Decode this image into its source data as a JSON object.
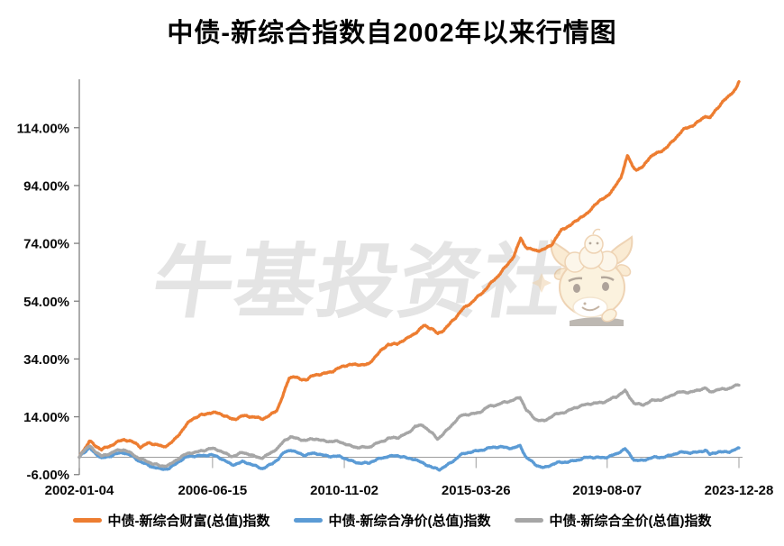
{
  "title": "中债-新综合指数自2002年以来行情图",
  "watermark": {
    "text": "牛基投资社"
  },
  "colors": {
    "wealth_orange": "#ED7D31",
    "netprice_blue": "#5B9BD5",
    "fullprice_gray": "#A6A6A6",
    "axis_gray": "#808080",
    "zero_line_gray": "#9E9E9E",
    "watermark_gray": "#E4E4E4",
    "label_black": "#0a0a0a"
  },
  "chart_data": {
    "type": "line",
    "title": "中债-新综合指数自2002年以来行情图",
    "xlabel": "",
    "ylabel": "",
    "unit": "%",
    "gridlines": false,
    "zero_axis_line": true,
    "legend_position": "bottom",
    "x_axis": {
      "tick_labels": [
        "2002-01-04",
        "2006-06-15",
        "2010-11-02",
        "2015-03-26",
        "2019-08-07",
        "2023-12-28"
      ],
      "tick_positions_decimal_years": [
        2002.01,
        2006.45,
        2010.84,
        2015.23,
        2019.6,
        2023.99
      ],
      "range_decimal_years": [
        2002.01,
        2023.99
      ]
    },
    "y_axis": {
      "tick_labels": [
        "114.00%",
        "94.00%",
        "74.00%",
        "54.00%",
        "34.00%",
        "14.00%",
        "-6.00%"
      ],
      "tick_values": [
        114,
        94,
        74,
        54,
        34,
        14,
        -6
      ],
      "ylim": [
        -6,
        130.8
      ]
    },
    "series": [
      {
        "name": "中债-新综合财富(总值)指数",
        "color": "#ED7D31",
        "points": [
          [
            2002.01,
            0
          ],
          [
            2002.1,
            2.0
          ],
          [
            2002.35,
            5.5
          ],
          [
            2002.55,
            3.5
          ],
          [
            2002.75,
            2.6
          ],
          [
            2003.0,
            4.0
          ],
          [
            2003.2,
            5.2
          ],
          [
            2003.5,
            5.8
          ],
          [
            2003.75,
            5.2
          ],
          [
            2003.95,
            4.6
          ],
          [
            2004.05,
            3.9
          ],
          [
            2004.3,
            5.0
          ],
          [
            2004.55,
            4.2
          ],
          [
            2004.8,
            3.3
          ],
          [
            2004.95,
            4.4
          ],
          [
            2005.2,
            6.5
          ],
          [
            2005.5,
            10.0
          ],
          [
            2005.8,
            13.2
          ],
          [
            2006.05,
            14.8
          ],
          [
            2006.35,
            15.6
          ],
          [
            2006.7,
            14.7
          ],
          [
            2007.1,
            13.4
          ],
          [
            2007.45,
            14.3
          ],
          [
            2007.8,
            13.6
          ],
          [
            2008.1,
            13.6
          ],
          [
            2008.4,
            14.9
          ],
          [
            2008.6,
            16.2
          ],
          [
            2008.8,
            21.0
          ],
          [
            2009.0,
            27.4
          ],
          [
            2009.15,
            28.3
          ],
          [
            2009.4,
            27.1
          ],
          [
            2009.6,
            26.8
          ],
          [
            2009.9,
            28.3
          ],
          [
            2010.3,
            29.6
          ],
          [
            2010.7,
            30.7
          ],
          [
            2011.0,
            31.9
          ],
          [
            2011.35,
            32.5
          ],
          [
            2011.65,
            31.9
          ],
          [
            2012.0,
            36.0
          ],
          [
            2012.3,
            39.5
          ],
          [
            2012.6,
            39.2
          ],
          [
            2012.95,
            40.8
          ],
          [
            2013.25,
            43.6
          ],
          [
            2013.5,
            45.9
          ],
          [
            2013.75,
            44.3
          ],
          [
            2013.95,
            42.3
          ],
          [
            2014.15,
            44.0
          ],
          [
            2014.45,
            47.6
          ],
          [
            2014.75,
            50.7
          ],
          [
            2015.05,
            53.0
          ],
          [
            2015.35,
            56.4
          ],
          [
            2015.65,
            59.4
          ],
          [
            2015.95,
            62.2
          ],
          [
            2016.2,
            65.6
          ],
          [
            2016.5,
            70.2
          ],
          [
            2016.72,
            75.8
          ],
          [
            2016.82,
            73.6
          ],
          [
            2016.95,
            71.9
          ],
          [
            2017.2,
            71.4
          ],
          [
            2017.5,
            72.3
          ],
          [
            2017.75,
            73.6
          ],
          [
            2018.1,
            78.5
          ],
          [
            2018.4,
            80.7
          ],
          [
            2018.7,
            83.2
          ],
          [
            2018.95,
            83.9
          ],
          [
            2019.2,
            87.4
          ],
          [
            2019.5,
            90.0
          ],
          [
            2019.8,
            92.6
          ],
          [
            2020.05,
            96.3
          ],
          [
            2020.28,
            104.2
          ],
          [
            2020.45,
            100.8
          ],
          [
            2020.6,
            99.8
          ],
          [
            2020.8,
            100.6
          ],
          [
            2021.0,
            103.4
          ],
          [
            2021.3,
            105.2
          ],
          [
            2021.6,
            107.7
          ],
          [
            2021.9,
            110.7
          ],
          [
            2022.2,
            113.4
          ],
          [
            2022.5,
            115.2
          ],
          [
            2022.75,
            117.4
          ],
          [
            2022.88,
            118.2
          ],
          [
            2023.02,
            116.9
          ],
          [
            2023.2,
            119.6
          ],
          [
            2023.5,
            123.6
          ],
          [
            2023.75,
            126.4
          ],
          [
            2023.9,
            127.6
          ],
          [
            2023.99,
            129.8
          ]
        ]
      },
      {
        "name": "中债-新综合净价(总值)指数",
        "color": "#5B9BD5",
        "points": [
          [
            2002.01,
            0
          ],
          [
            2002.1,
            1.4
          ],
          [
            2002.35,
            2.9
          ],
          [
            2002.55,
            1.0
          ],
          [
            2002.75,
            -0.3
          ],
          [
            2003.0,
            0.6
          ],
          [
            2003.2,
            1.2
          ],
          [
            2003.5,
            1.3
          ],
          [
            2003.8,
            0.2
          ],
          [
            2004.1,
            -1.5
          ],
          [
            2004.45,
            -3.6
          ],
          [
            2004.7,
            -4.3
          ],
          [
            2005.0,
            -3.6
          ],
          [
            2005.3,
            -1.6
          ],
          [
            2005.7,
            0.2
          ],
          [
            2006.05,
            0.8
          ],
          [
            2006.35,
            0.9
          ],
          [
            2006.7,
            -0.5
          ],
          [
            2007.1,
            -2.3
          ],
          [
            2007.45,
            -1.7
          ],
          [
            2007.8,
            -2.9
          ],
          [
            2008.1,
            -3.6
          ],
          [
            2008.45,
            -2.2
          ],
          [
            2008.65,
            -0.8
          ],
          [
            2008.85,
            1.6
          ],
          [
            2009.05,
            2.8
          ],
          [
            2009.3,
            1.7
          ],
          [
            2009.55,
            0.5
          ],
          [
            2009.9,
            1.3
          ],
          [
            2010.3,
            0.7
          ],
          [
            2010.7,
            -0.1
          ],
          [
            2011.0,
            -1.0
          ],
          [
            2011.35,
            -1.7
          ],
          [
            2011.65,
            -2.3
          ],
          [
            2012.0,
            -0.6
          ],
          [
            2012.3,
            0.7
          ],
          [
            2012.65,
            0.3
          ],
          [
            2012.95,
            -0.6
          ],
          [
            2013.2,
            -0.4
          ],
          [
            2013.5,
            -2.1
          ],
          [
            2013.8,
            -4.0
          ],
          [
            2014.0,
            -4.4
          ],
          [
            2014.3,
            -2.2
          ],
          [
            2014.7,
            0.5
          ],
          [
            2015.05,
            1.7
          ],
          [
            2015.35,
            2.7
          ],
          [
            2015.65,
            3.1
          ],
          [
            2015.95,
            3.3
          ],
          [
            2016.2,
            3.5
          ],
          [
            2016.5,
            3.5
          ],
          [
            2016.7,
            3.9
          ],
          [
            2016.9,
            -0.4
          ],
          [
            2017.2,
            -2.4
          ],
          [
            2017.5,
            -3.4
          ],
          [
            2017.8,
            -2.5
          ],
          [
            2018.1,
            -1.9
          ],
          [
            2018.5,
            -0.9
          ],
          [
            2018.9,
            -0.4
          ],
          [
            2019.2,
            -0.1
          ],
          [
            2019.5,
            0.2
          ],
          [
            2019.9,
            0.8
          ],
          [
            2020.2,
            2.8
          ],
          [
            2020.5,
            -0.6
          ],
          [
            2020.8,
            -1.2
          ],
          [
            2021.1,
            -0.4
          ],
          [
            2021.5,
            0.4
          ],
          [
            2021.9,
            1.2
          ],
          [
            2022.3,
            1.6
          ],
          [
            2022.7,
            2.2
          ],
          [
            2022.88,
            2.4
          ],
          [
            2023.02,
            0.6
          ],
          [
            2023.3,
            1.8
          ],
          [
            2023.65,
            2.2
          ],
          [
            2023.99,
            2.9
          ]
        ]
      },
      {
        "name": "中债-新综合全价(总值)指数",
        "color": "#A6A6A6",
        "points": [
          [
            2002.01,
            0
          ],
          [
            2002.1,
            1.8
          ],
          [
            2002.35,
            3.6
          ],
          [
            2002.55,
            1.8
          ],
          [
            2002.75,
            0.5
          ],
          [
            2003.0,
            1.5
          ],
          [
            2003.2,
            2.1
          ],
          [
            2003.5,
            2.3
          ],
          [
            2003.8,
            1.1
          ],
          [
            2004.1,
            -0.6
          ],
          [
            2004.45,
            -2.5
          ],
          [
            2004.7,
            -3.1
          ],
          [
            2005.0,
            -2.4
          ],
          [
            2005.3,
            -0.6
          ],
          [
            2005.7,
            1.4
          ],
          [
            2006.05,
            2.4
          ],
          [
            2006.35,
            2.9
          ],
          [
            2006.7,
            2.1
          ],
          [
            2007.1,
            0.6
          ],
          [
            2007.45,
            1.4
          ],
          [
            2007.8,
            0.4
          ],
          [
            2008.1,
            0.1
          ],
          [
            2008.45,
            1.7
          ],
          [
            2008.65,
            3.1
          ],
          [
            2008.85,
            5.8
          ],
          [
            2009.05,
            7.4
          ],
          [
            2009.3,
            6.5
          ],
          [
            2009.55,
            5.5
          ],
          [
            2009.9,
            6.4
          ],
          [
            2010.3,
            5.7
          ],
          [
            2010.7,
            5.0
          ],
          [
            2011.0,
            4.2
          ],
          [
            2011.35,
            3.6
          ],
          [
            2011.65,
            3.1
          ],
          [
            2012.0,
            5.2
          ],
          [
            2012.3,
            6.8
          ],
          [
            2012.65,
            6.6
          ],
          [
            2012.95,
            8.2
          ],
          [
            2013.2,
            11.0
          ],
          [
            2013.45,
            11.2
          ],
          [
            2013.7,
            8.6
          ],
          [
            2013.95,
            6.2
          ],
          [
            2014.2,
            9.0
          ],
          [
            2014.5,
            12.1
          ],
          [
            2014.75,
            14.2
          ],
          [
            2015.05,
            14.9
          ],
          [
            2015.35,
            15.9
          ],
          [
            2015.65,
            17.4
          ],
          [
            2015.95,
            17.9
          ],
          [
            2016.2,
            19.4
          ],
          [
            2016.5,
            20.0
          ],
          [
            2016.7,
            20.6
          ],
          [
            2016.9,
            16.1
          ],
          [
            2017.2,
            13.4
          ],
          [
            2017.5,
            12.7
          ],
          [
            2017.8,
            14.2
          ],
          [
            2018.1,
            15.3
          ],
          [
            2018.5,
            17.3
          ],
          [
            2018.9,
            17.9
          ],
          [
            2019.2,
            18.8
          ],
          [
            2019.5,
            19.4
          ],
          [
            2019.9,
            20.6
          ],
          [
            2020.2,
            23.0
          ],
          [
            2020.5,
            19.0
          ],
          [
            2020.8,
            17.9
          ],
          [
            2021.1,
            19.4
          ],
          [
            2021.5,
            20.5
          ],
          [
            2021.9,
            22.0
          ],
          [
            2022.3,
            22.6
          ],
          [
            2022.7,
            23.6
          ],
          [
            2022.88,
            23.8
          ],
          [
            2023.02,
            22.1
          ],
          [
            2023.3,
            23.5
          ],
          [
            2023.65,
            24.1
          ],
          [
            2023.99,
            24.8
          ]
        ]
      }
    ]
  }
}
